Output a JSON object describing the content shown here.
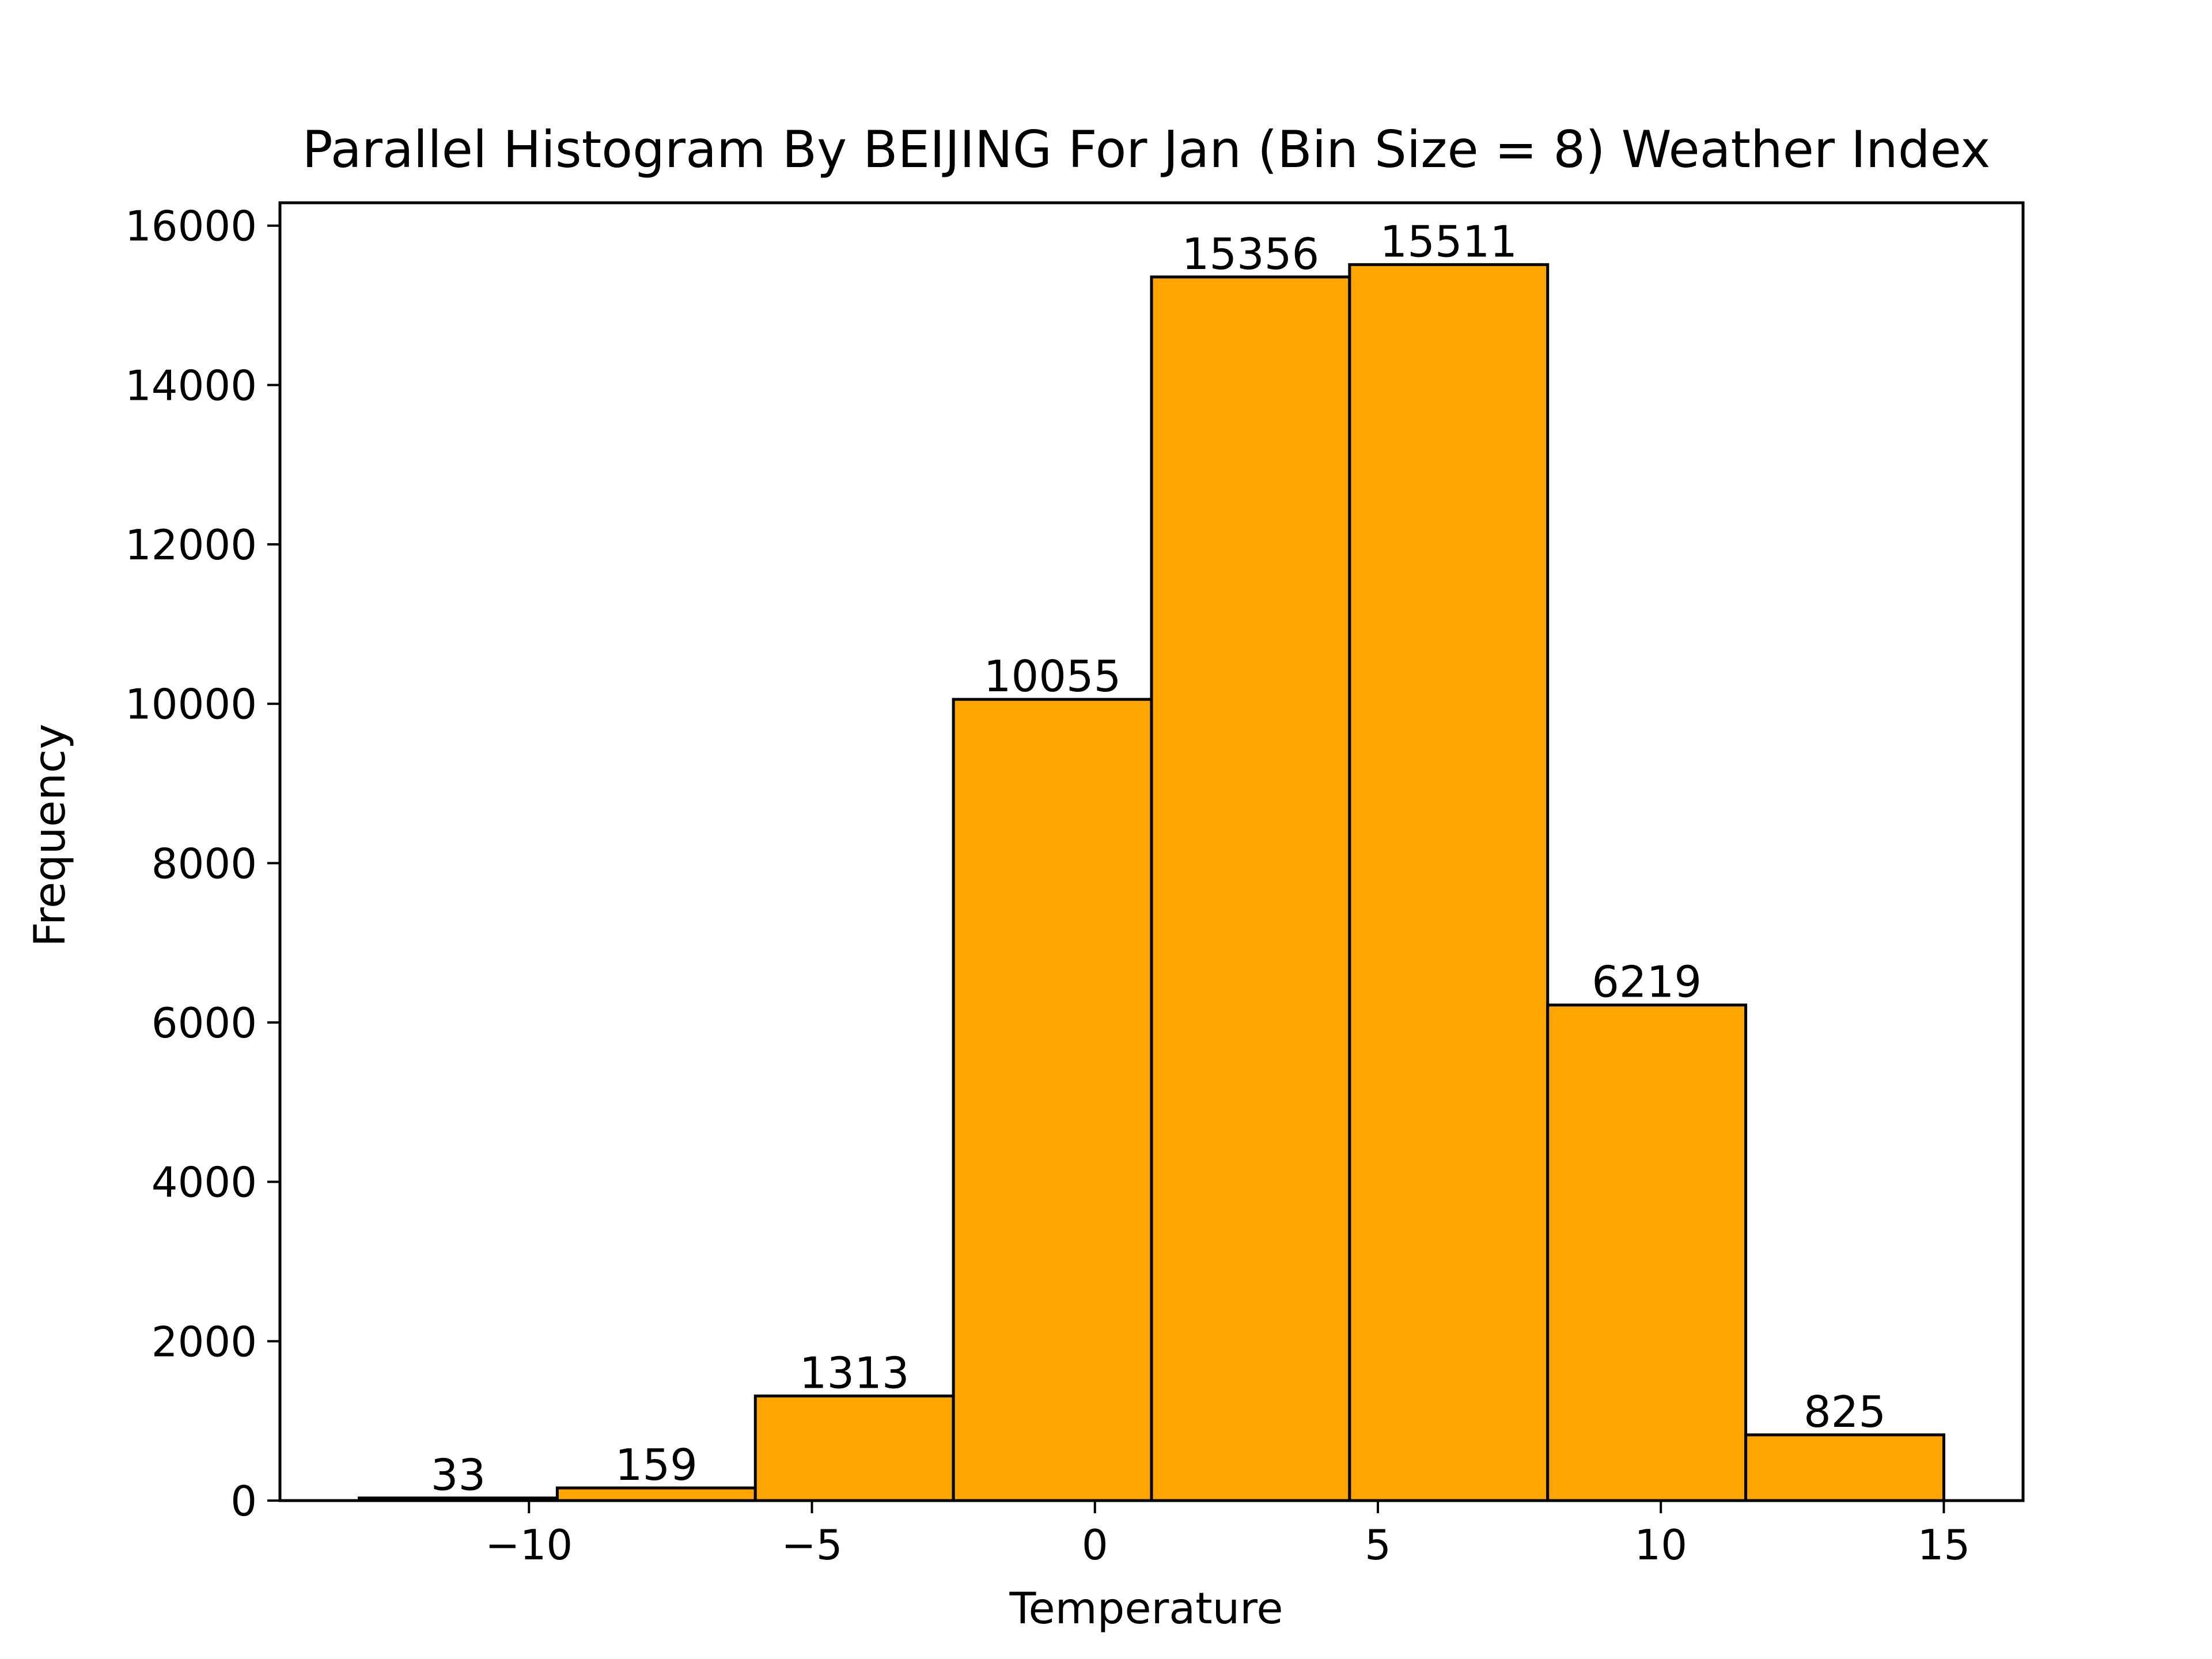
{
  "chart_data": {
    "type": "bar",
    "title": "Parallel Histogram By BEIJING For Jan (Bin Size = 8) Weather Index",
    "xlabel": "Temperature",
    "ylabel": "Frequency",
    "bin_edges": [
      -13,
      -9.5,
      -6,
      -2.5,
      1,
      4.5,
      8,
      11.5,
      15
    ],
    "values": [
      33,
      159,
      1313,
      10055,
      15356,
      15511,
      6219,
      825
    ],
    "data_labels": [
      "33",
      "159",
      "1313",
      "10055",
      "15356",
      "15511",
      "6219",
      "825"
    ],
    "xlim": [
      -14.4,
      16.4
    ],
    "ylim": [
      0,
      16287
    ],
    "x_ticks": [
      -10,
      -5,
      0,
      5,
      10,
      15
    ],
    "x_tick_labels": [
      "−10",
      "−5",
      "0",
      "5",
      "10",
      "15"
    ],
    "y_ticks": [
      0,
      2000,
      4000,
      6000,
      8000,
      10000,
      12000,
      14000,
      16000
    ],
    "y_tick_labels": [
      "0",
      "2000",
      "4000",
      "6000",
      "8000",
      "10000",
      "12000",
      "14000",
      "16000"
    ],
    "grid": false,
    "bar_color": "#ffa500",
    "edge_color": "#000000"
  }
}
